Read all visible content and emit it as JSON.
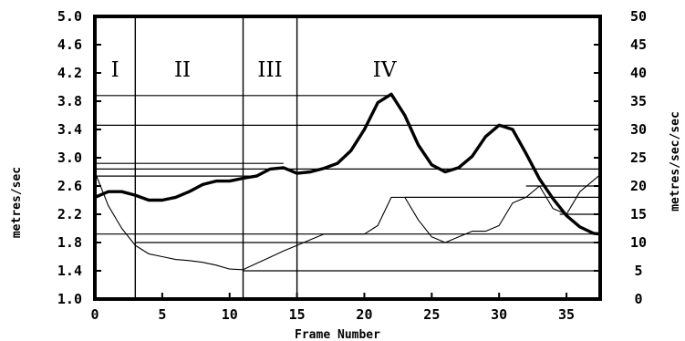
{
  "chart_data": {
    "type": "line",
    "xlabel": "Frame Number",
    "ylabel_left": "metres/sec",
    "ylabel_right": "metres/sec/sec",
    "xlim": [
      0,
      37.5
    ],
    "ylim_left": [
      1.0,
      5.0
    ],
    "ylim_right": [
      0,
      50
    ],
    "x_ticks": [
      "0",
      "5",
      "10",
      "15",
      "20",
      "25",
      "30",
      "35"
    ],
    "y_ticks_left": [
      "1.0",
      "1.4",
      "1.8",
      "2.2",
      "2.6",
      "3.0",
      "3.4",
      "3.8",
      "4.2",
      "4.6",
      "5.0"
    ],
    "y_ticks_right": [
      "0",
      "5",
      "10",
      "15",
      "20",
      "25",
      "30",
      "35",
      "40",
      "45",
      "50"
    ],
    "grid": false,
    "phase_dividers": [
      3,
      11,
      15
    ],
    "phase_labels": [
      {
        "label": "I",
        "x": 1.5
      },
      {
        "label": "II",
        "x": 6.5
      },
      {
        "label": "III",
        "x": 13
      },
      {
        "label": "IV",
        "x": 21.5
      }
    ],
    "series": [
      {
        "axis": "left",
        "style": "thick",
        "x": [
          0,
          1,
          2,
          3,
          4,
          5,
          6,
          7,
          8,
          9,
          10,
          11,
          12,
          13,
          14,
          15,
          16,
          17,
          18,
          19,
          20,
          21,
          22,
          23,
          24,
          25,
          26,
          27,
          28,
          29,
          30,
          31,
          32,
          33,
          34,
          35,
          36,
          37,
          37.5
        ],
        "values": [
          2.44,
          2.52,
          2.52,
          2.47,
          2.4,
          2.4,
          2.44,
          2.52,
          2.62,
          2.67,
          2.67,
          2.71,
          2.74,
          2.84,
          2.86,
          2.78,
          2.8,
          2.85,
          2.92,
          3.1,
          3.4,
          3.78,
          3.9,
          3.6,
          3.18,
          2.9,
          2.8,
          2.86,
          3.02,
          3.3,
          3.46,
          3.4,
          3.06,
          2.7,
          2.42,
          2.18,
          2.02,
          1.93,
          1.92
        ]
      },
      {
        "axis": "right",
        "style": "thin",
        "x": [
          0,
          1,
          2,
          3,
          4,
          5,
          6,
          7,
          8,
          9,
          10,
          11,
          12,
          13,
          14,
          15,
          16,
          17,
          18,
          19,
          20,
          21,
          22,
          23,
          24,
          25,
          26,
          27,
          28,
          29,
          30,
          31,
          32,
          33,
          34,
          35,
          36,
          37,
          37.5
        ],
        "values": [
          22.5,
          16.5,
          12.5,
          9.5,
          8.0,
          7.5,
          7.0,
          6.8,
          6.5,
          6.0,
          5.3,
          5.2,
          6.3,
          7.4,
          8.5,
          9.5,
          10.5,
          11.5,
          11.5,
          11.5,
          11.5,
          13,
          18,
          18,
          14,
          11,
          10,
          11,
          12,
          12,
          13,
          17,
          18,
          20,
          16,
          15,
          19,
          21,
          22
        ]
      }
    ],
    "reference_lines": [
      {
        "axis": "left",
        "y": 3.88,
        "x0": 0,
        "x1": 22
      },
      {
        "axis": "left",
        "y": 3.46,
        "x0": 0,
        "x1": 37.5
      },
      {
        "axis": "left",
        "y": 2.92,
        "x0": 0,
        "x1": 14
      },
      {
        "axis": "left",
        "y": 2.84,
        "x0": 0,
        "x1": 37.5
      },
      {
        "axis": "left",
        "y": 2.74,
        "x0": 0,
        "x1": 12
      },
      {
        "axis": "left",
        "y": 1.92,
        "x0": 0,
        "x1": 37.5
      },
      {
        "axis": "right",
        "y": 20,
        "x0": 32,
        "x1": 37.5
      },
      {
        "axis": "right",
        "y": 18,
        "x0": 23,
        "x1": 37.5
      },
      {
        "axis": "right",
        "y": 15,
        "x0": 34.5,
        "x1": 37.5
      },
      {
        "axis": "right",
        "y": 10,
        "x0": 3,
        "x1": 37.5
      },
      {
        "axis": "right",
        "y": 5,
        "x0": 11,
        "x1": 37.5
      }
    ]
  }
}
